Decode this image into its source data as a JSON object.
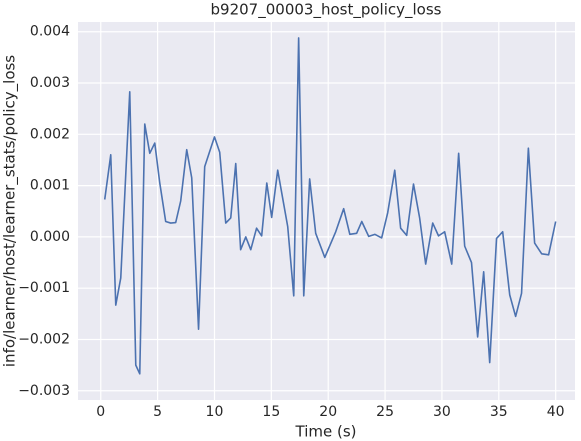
{
  "chart_data": {
    "type": "line",
    "title": "b9207_00003_host_policy_loss",
    "xlabel": "Time (s)",
    "ylabel": "info/learner/host/learner_stats/policy_loss",
    "x": [
      0.35,
      0.88,
      1.32,
      1.76,
      2.55,
      3.08,
      3.43,
      3.87,
      4.31,
      4.75,
      5.19,
      5.71,
      6.15,
      6.59,
      7.03,
      7.56,
      8.0,
      8.6,
      9.14,
      10.0,
      10.46,
      10.99,
      11.43,
      11.87,
      12.3,
      12.75,
      13.19,
      13.7,
      14.15,
      14.6,
      15.03,
      15.56,
      16.0,
      16.44,
      16.97,
      17.4,
      17.85,
      18.37,
      18.9,
      19.7,
      20.66,
      21.36,
      21.9,
      22.5,
      22.95,
      23.56,
      24.1,
      24.7,
      25.23,
      25.85,
      26.37,
      26.9,
      27.5,
      28.04,
      28.57,
      29.19,
      29.7,
      30.24,
      30.86,
      31.47,
      32.0,
      32.6,
      33.14,
      33.67,
      34.2,
      34.8,
      35.34,
      35.96,
      36.48,
      37.0,
      37.6,
      38.15,
      38.77,
      39.38,
      40.0
    ],
    "series": [
      {
        "name": "policy_loss",
        "color": "#4c72b0",
        "values": [
          0.00073,
          0.0016,
          -0.00133,
          -0.0008,
          0.00283,
          -0.0025,
          -0.00267,
          0.0022,
          0.00163,
          0.00183,
          0.00105,
          0.0003,
          0.00027,
          0.00028,
          0.0007,
          0.0017,
          0.00115,
          -0.0018,
          0.00137,
          0.00195,
          0.00165,
          0.00027,
          0.00037,
          0.00143,
          -0.00025,
          0.0,
          -0.00025,
          0.00017,
          2e-05,
          0.00105,
          0.00038,
          0.0013,
          0.00075,
          0.0002,
          -0.00115,
          0.00388,
          -0.00115,
          0.00113,
          7e-05,
          -0.0004,
          0.0001,
          0.00055,
          5e-05,
          7e-05,
          0.0003,
          1e-05,
          5e-05,
          -2e-05,
          0.00047,
          0.0013,
          0.00017,
          3e-05,
          0.00103,
          0.00037,
          -0.00053,
          0.00027,
          2e-05,
          0.0001,
          -0.00053,
          0.00163,
          -0.00018,
          -0.0005,
          -0.00195,
          -0.00068,
          -0.00245,
          -3e-05,
          0.0001,
          -0.00113,
          -0.00155,
          -0.0011,
          0.00173,
          -0.00012,
          -0.00033,
          -0.00035,
          0.0003
        ]
      }
    ],
    "xlim": [
      -2.0,
      41.7
    ],
    "ylim": [
      -0.00318,
      0.00419
    ],
    "xticks": [
      0,
      5,
      10,
      15,
      20,
      25,
      30,
      35,
      40
    ],
    "yticks": [
      {
        "value": -0.003,
        "label": "−0.003"
      },
      {
        "value": -0.002,
        "label": "−0.002"
      },
      {
        "value": -0.001,
        "label": "−0.001"
      },
      {
        "value": 0,
        "label": "0.000"
      },
      {
        "value": 0.001,
        "label": "0.001"
      },
      {
        "value": 0.002,
        "label": "0.002"
      },
      {
        "value": 0.003,
        "label": "0.003"
      },
      {
        "value": 0.004,
        "label": "0.004"
      }
    ],
    "grid": true
  }
}
